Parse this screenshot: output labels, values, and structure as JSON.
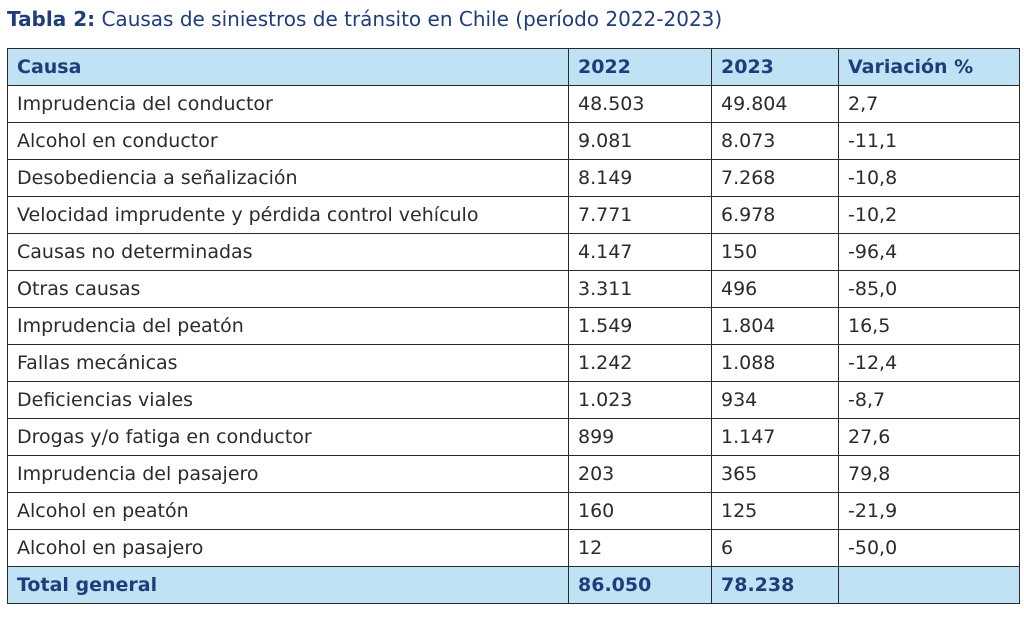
{
  "title": {
    "prefix": "Tabla 2:",
    "text": "Causas de siniestros de tránsito en Chile (período 2022-2023)"
  },
  "columns": [
    "Causa",
    "2022",
    "2023",
    "Variación %"
  ],
  "rows": [
    {
      "causa": "Imprudencia del conductor",
      "y2022": "48.503",
      "y2023": "49.804",
      "var": "2,7"
    },
    {
      "causa": "Alcohol en conductor",
      "y2022": "9.081",
      "y2023": "8.073",
      "var": "-11,1"
    },
    {
      "causa": "Desobediencia a señalización",
      "y2022": "8.149",
      "y2023": "7.268",
      "var": "-10,8"
    },
    {
      "causa": "Velocidad imprudente y pérdida control vehículo",
      "y2022": "7.771",
      "y2023": "6.978",
      "var": "-10,2"
    },
    {
      "causa": "Causas no determinadas",
      "y2022": "4.147",
      "y2023": "150",
      "var": "-96,4"
    },
    {
      "causa": "Otras causas",
      "y2022": "3.311",
      "y2023": "496",
      "var": "-85,0"
    },
    {
      "causa": "Imprudencia del peatón",
      "y2022": "1.549",
      "y2023": "1.804",
      "var": "16,5"
    },
    {
      "causa": "Fallas mecánicas",
      "y2022": "1.242",
      "y2023": "1.088",
      "var": "-12,4"
    },
    {
      "causa": "Deficiencias viales",
      "y2022": "1.023",
      "y2023": "934",
      "var": "-8,7"
    },
    {
      "causa": "Drogas y/o fatiga en conductor",
      "y2022": "899",
      "y2023": "1.147",
      "var": "27,6"
    },
    {
      "causa": "Imprudencia del pasajero",
      "y2022": "203",
      "y2023": "365",
      "var": "79,8"
    },
    {
      "causa": "Alcohol en peatón",
      "y2022": "160",
      "y2023": "125",
      "var": "-21,9"
    },
    {
      "causa": "Alcohol en pasajero",
      "y2022": "12",
      "y2023": "6",
      "var": "-50,0"
    }
  ],
  "total": {
    "label": "Total general",
    "y2022": "86.050",
    "y2023": "78.238",
    "var": ""
  },
  "colors": {
    "header_bg": "#bfe3f4",
    "header_text": "#1f3d7a",
    "title": "#1f3d7a"
  }
}
